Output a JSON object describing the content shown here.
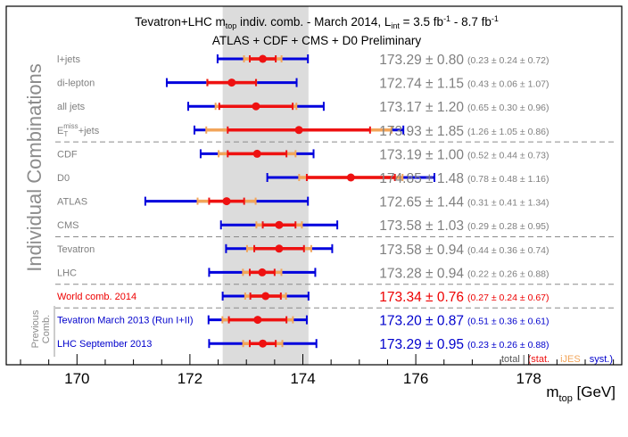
{
  "chart_data": {
    "type": "scatter",
    "title_parts": {
      "pre": "Tevatron+LHC m",
      "pre_sub": "top",
      "mid": " indiv. comb. - March 2014,  L",
      "mid_sub": "int",
      "post": " = 3.5 fb",
      "post_sup": "-1",
      "post2": " - 8.7 fb",
      "post2_sup": "-1"
    },
    "subtitle": "ATLAS + CDF + CMS + D0 Preliminary",
    "group_label": "Individual Combinations",
    "previous_label_line1": "Previous",
    "previous_label_line2": "Comb.",
    "xlabel_main": "m",
    "xlabel_sub": "top",
    "xlabel_unit": " [GeV]",
    "xlim": [
      169,
      180
    ],
    "xticks": [
      170,
      172,
      174,
      176,
      178,
      180
    ],
    "band": {
      "center": 173.34,
      "halfwidth": 0.76
    },
    "legend": {
      "total": "total",
      "separator": "|",
      "stat": "(stat.",
      "ijes": "iJES",
      "syst": "syst.)"
    },
    "colors": {
      "total_bar": "#0000dd",
      "stat_bar": "#ee1111",
      "ijes_bar": "#f2a55a",
      "marker": "#ee1111",
      "label_grey": "#7f7f7f",
      "label_red": "#ee0000",
      "label_blue": "#0000cc",
      "band": "#dcdcdc"
    },
    "series": [
      {
        "label": "l+jets",
        "label_parts": null,
        "value": 173.29,
        "total": 0.8,
        "stat": 0.23,
        "ijes": 0.24,
        "syst": 0.72,
        "value_text": "173.29 ± 0.80",
        "detail_text": "(0.23 ± 0.24 ± 0.72)",
        "style": "grey"
      },
      {
        "label": "di-lepton",
        "label_parts": null,
        "value": 172.74,
        "total": 1.15,
        "stat": 0.43,
        "ijes": 0.06,
        "syst": 1.07,
        "value_text": "172.74 ± 1.15",
        "detail_text": "(0.43 ± 0.06 ± 1.07)",
        "style": "grey"
      },
      {
        "label": "all jets",
        "label_parts": null,
        "value": 173.17,
        "total": 1.2,
        "stat": 0.65,
        "ijes": 0.3,
        "syst": 0.96,
        "value_text": "173.17 ± 1.20",
        "detail_text": "(0.65 ± 0.30 ± 0.96)",
        "style": "grey"
      },
      {
        "label": "",
        "label_parts": {
          "main": "E",
          "sub": "T",
          "sup": "miss",
          "rest": "+jets"
        },
        "value": 173.93,
        "total": 1.85,
        "stat": 1.26,
        "ijes": 1.05,
        "syst": 0.86,
        "value_text": "173.93 ± 1.85",
        "detail_text": "(1.26 ± 1.05 ± 0.86)",
        "style": "grey"
      },
      {
        "label": "CDF",
        "label_parts": null,
        "value": 173.19,
        "total": 1.0,
        "stat": 0.52,
        "ijes": 0.44,
        "syst": 0.73,
        "value_text": "173.19 ± 1.00",
        "detail_text": "(0.52 ± 0.44 ± 0.73)",
        "style": "grey"
      },
      {
        "label": "D0",
        "label_parts": null,
        "value": 174.85,
        "total": 1.48,
        "stat": 0.78,
        "ijes": 0.48,
        "syst": 1.16,
        "value_text": "174.85 ± 1.48",
        "detail_text": "(0.78 ± 0.48 ± 1.16)",
        "style": "grey"
      },
      {
        "label": "ATLAS",
        "label_parts": null,
        "value": 172.65,
        "total": 1.44,
        "stat": 0.31,
        "ijes": 0.41,
        "syst": 1.34,
        "value_text": "172.65 ± 1.44",
        "detail_text": "(0.31 ± 0.41 ± 1.34)",
        "style": "grey"
      },
      {
        "label": "CMS",
        "label_parts": null,
        "value": 173.58,
        "total": 1.03,
        "stat": 0.29,
        "ijes": 0.28,
        "syst": 0.95,
        "value_text": "173.58 ± 1.03",
        "detail_text": "(0.29 ± 0.28 ± 0.95)",
        "style": "grey"
      },
      {
        "label": "Tevatron",
        "label_parts": null,
        "value": 173.58,
        "total": 0.94,
        "stat": 0.44,
        "ijes": 0.36,
        "syst": 0.74,
        "value_text": "173.58 ± 0.94",
        "detail_text": "(0.44 ± 0.36 ± 0.74)",
        "style": "grey"
      },
      {
        "label": "LHC",
        "label_parts": null,
        "value": 173.28,
        "total": 0.94,
        "stat": 0.22,
        "ijes": 0.26,
        "syst": 0.88,
        "value_text": "173.28 ± 0.94",
        "detail_text": "(0.22 ± 0.26 ± 0.88)",
        "style": "grey"
      },
      {
        "label": "World comb. 2014",
        "label_parts": null,
        "value": 173.34,
        "total": 0.76,
        "stat": 0.27,
        "ijes": 0.24,
        "syst": 0.67,
        "value_text": "173.34 ± 0.76",
        "detail_text": "(0.27 ± 0.24 ± 0.67)",
        "style": "red"
      },
      {
        "label": "Tevatron March 2013 (Run I+II)",
        "label_parts": null,
        "value": 173.2,
        "total": 0.87,
        "stat": 0.51,
        "ijes": 0.36,
        "syst": 0.61,
        "value_text": "173.20 ± 0.87",
        "detail_text": "(0.51 ± 0.36 ± 0.61)",
        "style": "blue"
      },
      {
        "label": "LHC September 2013",
        "label_parts": null,
        "value": 173.29,
        "total": 0.95,
        "stat": 0.23,
        "ijes": 0.26,
        "syst": 0.88,
        "value_text": "173.29 ± 0.95",
        "detail_text": "(0.23 ± 0.26 ± 0.88)",
        "style": "blue"
      }
    ],
    "separators_after_rows": [
      3,
      7,
      9,
      10
    ]
  }
}
